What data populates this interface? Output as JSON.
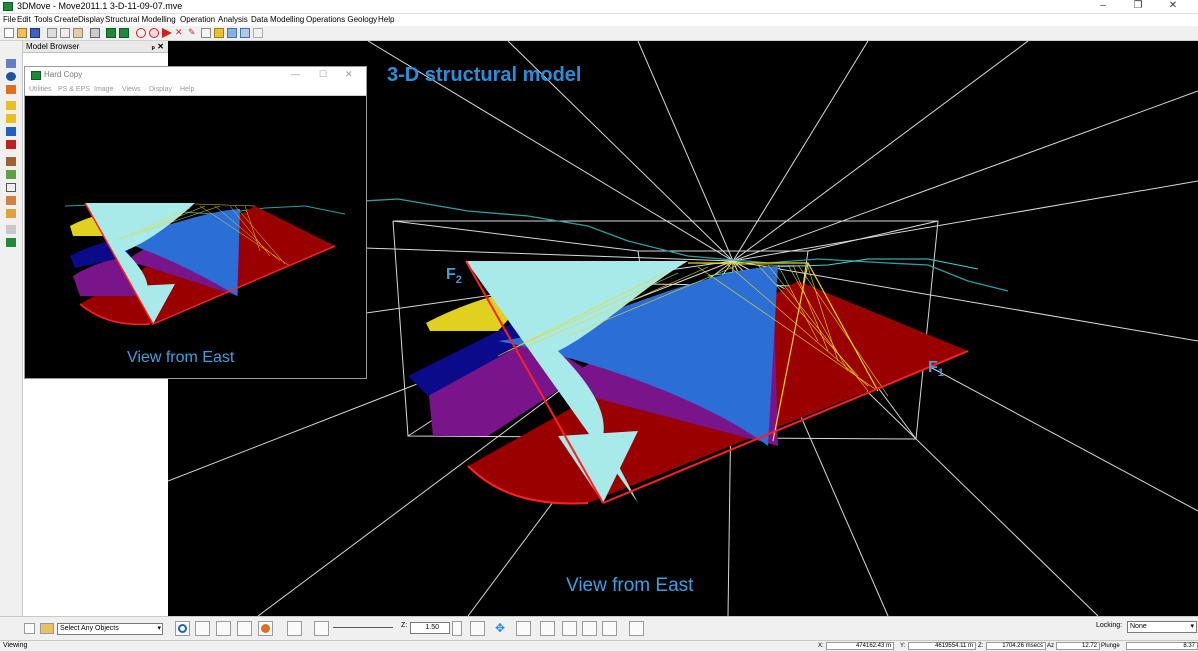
{
  "window": {
    "title": "3DMove - Move2011.1    3-D-11-09-07.mve",
    "controls": {
      "minimize": "–",
      "maximize": "❐",
      "close": "✕"
    }
  },
  "menu": [
    "File",
    "Edit",
    "Tools",
    "Create",
    "Display",
    "Structural Modelling",
    "Operation",
    "Analysis",
    "Data",
    "Modelling",
    "Operations Geology",
    "Help"
  ],
  "model_browser": {
    "title": "Model Browser",
    "pin": "ₚ ✕"
  },
  "hard_copy": {
    "title": "Hard Copy",
    "menu": [
      "Utilities",
      "PS & EPS",
      "Image",
      "Views",
      "Display",
      "Help"
    ],
    "caption": "View from East",
    "controls": {
      "minimize": "—",
      "maximize": "☐",
      "close": "✕"
    }
  },
  "viewport": {
    "heading": "3-D structural model",
    "caption": "View from East",
    "fault_labels": [
      {
        "letter": "F",
        "sub": "2"
      },
      {
        "letter": "F",
        "sub": "1"
      }
    ]
  },
  "bottom_toolbar": {
    "select_value": "Select Any Objects",
    "zoom_label": "Z:",
    "zoom_value": "1.50",
    "locking_label": "Locking:",
    "locking_value": "None"
  },
  "status": {
    "mode": "Viewing",
    "x_label": "X:",
    "x_value": "474162.43 m",
    "y_label": "Y:",
    "y_value": "4619554.11 m",
    "z_label": "Z:",
    "z_value": "1704.26 msecs",
    "az_label": "Az",
    "az_value": "12.72",
    "plunge_label": "Plunge",
    "plunge_value": "8.37"
  },
  "colors": {
    "viewport_bg": "#000000",
    "heading_blue": "#2a8fd8",
    "caption_blue": "#3fa0e0",
    "horizon_red": "#9a0000",
    "fault_cyan": "#a8eaea",
    "horizon_blue": "#2b6fd6",
    "horizon_purple": "#7a148a",
    "horizon_yellow": "#e0d020",
    "grid_white": "#d8d8d8"
  }
}
